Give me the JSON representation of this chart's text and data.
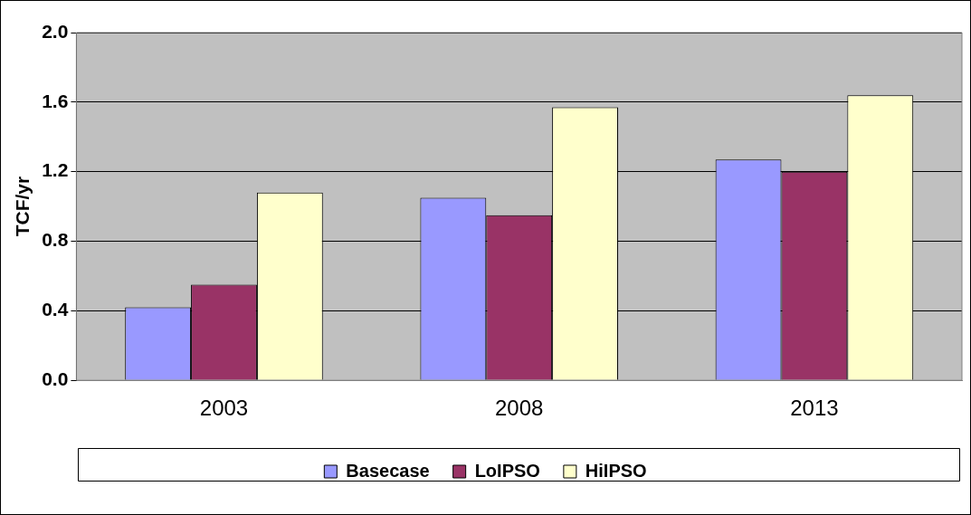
{
  "chart_data": {
    "type": "bar",
    "ylabel": "TCF/yr",
    "categories": [
      "2003",
      "2008",
      "2013"
    ],
    "series": [
      {
        "name": "Basecase",
        "color": "#9999ff",
        "values": [
          0.42,
          1.05,
          1.27
        ]
      },
      {
        "name": "LoIPSO",
        "color": "#993366",
        "values": [
          0.55,
          0.95,
          1.2
        ]
      },
      {
        "name": "HiIPSO",
        "color": "#ffffcc",
        "values": [
          1.08,
          1.57,
          1.64
        ]
      }
    ],
    "ylim": [
      0,
      2
    ],
    "yticks": [
      {
        "value": 0,
        "label": "0.0"
      },
      {
        "value": 0.4,
        "label": "0.4"
      },
      {
        "value": 0.8,
        "label": "0.8"
      },
      {
        "value": 1.2,
        "label": "1.2"
      },
      {
        "value": 1.6,
        "label": "1.6"
      },
      {
        "value": 2,
        "label": "2.0"
      }
    ],
    "grid": "y",
    "legend": "bottom"
  }
}
